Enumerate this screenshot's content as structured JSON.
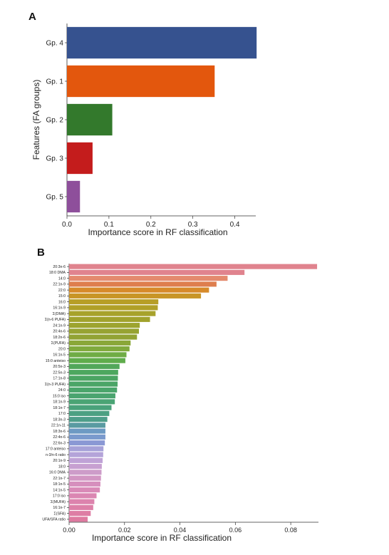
{
  "chart_data": [
    {
      "type": "bar",
      "orientation": "horizontal",
      "panel": "A",
      "title": "",
      "xlabel": "Importance score in RF classification",
      "ylabel": "Features (FA groups)",
      "xlim": [
        0,
        0.45
      ],
      "xticks": [
        0.0,
        0.1,
        0.2,
        0.3,
        0.4
      ],
      "xtick_labels": [
        "0.0",
        "0.1",
        "0.2",
        "0.3",
        "0.4"
      ],
      "grid": false,
      "categories": [
        "Gp. 4",
        "Gp. 1",
        "Gp. 2",
        "Gp. 3",
        "Gp. 5"
      ],
      "values": [
        0.452,
        0.352,
        0.108,
        0.061,
        0.031
      ],
      "colors": [
        "#36528f",
        "#e3570d",
        "#33792c",
        "#c41c1c",
        "#8e4f9b"
      ]
    },
    {
      "type": "bar",
      "orientation": "horizontal",
      "panel": "B",
      "title": "",
      "xlabel": "Importance score in RF classification",
      "ylabel": "",
      "xlim": [
        0,
        0.09
      ],
      "xticks": [
        0.0,
        0.02,
        0.04,
        0.06,
        0.08
      ],
      "xtick_labels": [
        "0.00",
        "0.02",
        "0.04",
        "0.06",
        "0.08"
      ],
      "grid": false,
      "categories": [
        "20:3n-6",
        "18:0 DMA",
        "14:0",
        "22:1n-9",
        "22:0",
        "15:0",
        "16:0",
        "16:1n-9",
        "Σ(DMA)",
        "Σ(n-6 PUFA)",
        "24:1n-9",
        "20:4n-6",
        "18:2n-6",
        "Σ(PUFA)",
        "20:0",
        "16:1n-5",
        "15:0 anteiso",
        "20:5n-3",
        "22:5n-3",
        "17:1n-8",
        "Σ(n-3 PUFA)",
        "24:0",
        "15:0 iso",
        "18:1n-9",
        "18:1n-7",
        "17:0",
        "18:3n-3",
        "22:1n-11",
        "18:3n-6",
        "22:4n-6",
        "22:6n-3",
        "17:0 anteiso",
        "n-3/n-6 ratio",
        "20:1n-9",
        "18:0",
        "16:0 DMA",
        "22:1n-7",
        "18:1n-5",
        "14:1n-5",
        "17:0 iso",
        "Σ(MUFA)",
        "16:1n-7",
        "Σ(SFA)",
        "UFA/SFA ratio"
      ],
      "values": [
        0.0895,
        0.0633,
        0.0572,
        0.0532,
        0.0505,
        0.0476,
        0.0322,
        0.032,
        0.0312,
        0.0292,
        0.0255,
        0.0252,
        0.0245,
        0.0222,
        0.0218,
        0.0207,
        0.0203,
        0.0182,
        0.0177,
        0.0176,
        0.0175,
        0.0173,
        0.0167,
        0.0165,
        0.0153,
        0.0145,
        0.0138,
        0.0131,
        0.0131,
        0.0131,
        0.0129,
        0.0124,
        0.0123,
        0.0121,
        0.0118,
        0.0117,
        0.0115,
        0.0113,
        0.0111,
        0.0099,
        0.0091,
        0.0087,
        0.0078,
        0.0067
      ],
      "colors": [
        "#e0838e",
        "#e0838e",
        "#e48a6e",
        "#de7e4e",
        "#d78a2a",
        "#c89526",
        "#b79e26",
        "#b0a028",
        "#a7a22b",
        "#a1a22c",
        "#9da42f",
        "#97a332",
        "#92a334",
        "#8aa738",
        "#80aa3c",
        "#6fac45",
        "#5fac4c",
        "#52a75a",
        "#4da75f",
        "#4ba563",
        "#4ba567",
        "#4aa56b",
        "#4aa46f",
        "#4aa474",
        "#4aa27b",
        "#4ca082",
        "#4f9e8a",
        "#5a9ba2",
        "#6d9ac3",
        "#7a9acd",
        "#8a98d4",
        "#a6a1d8",
        "#b4a4d9",
        "#bfa2d6",
        "#c7a0d1",
        "#cd9cc9",
        "#d296c3",
        "#d68fbd",
        "#d98ab7",
        "#db86b2",
        "#dc83ad",
        "#dd80a8",
        "#de7da4",
        "#de7aa0"
      ]
    }
  ]
}
